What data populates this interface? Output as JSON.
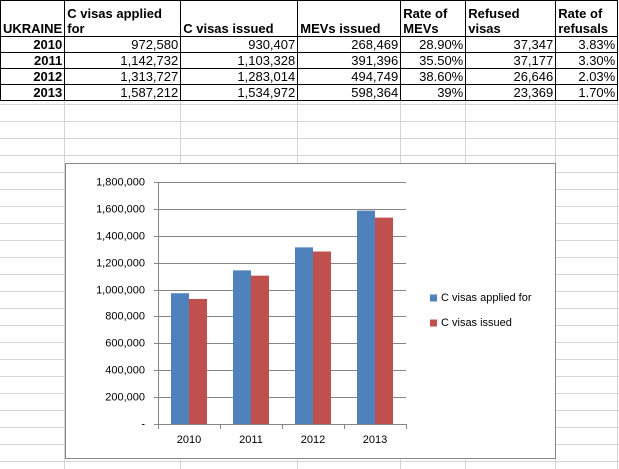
{
  "table": {
    "header": [
      "UKRAINE",
      "C visas applied for",
      "C visas issued",
      "MEVs issued",
      "Rate of MEVs",
      "Refused visas",
      "Rate of refusals"
    ],
    "rows": [
      [
        "2010",
        "972,580",
        "930,407",
        "268,469",
        "28.90%",
        "37,347",
        "3.83%"
      ],
      [
        "2011",
        "1,142,732",
        "1,103,328",
        "391,396",
        "35.50%",
        "37,177",
        "3.30%"
      ],
      [
        "2012",
        "1,313,727",
        "1,283,014",
        "494,749",
        "38.60%",
        "26,646",
        "2.03%"
      ],
      [
        "2013",
        "1,587,212",
        "1,534,972",
        "598,364",
        "39%",
        "23,369",
        "1.70%"
      ]
    ]
  },
  "chart_data": {
    "type": "bar",
    "categories": [
      "2010",
      "2011",
      "2012",
      "2013"
    ],
    "series": [
      {
        "name": "C visas applied for",
        "color": "#4f81bd",
        "values": [
          972580,
          1142732,
          1313727,
          1587212
        ]
      },
      {
        "name": "C visas issued",
        "color": "#c0504d",
        "values": [
          930407,
          1103328,
          1283014,
          1534972
        ]
      }
    ],
    "ylim": [
      0,
      1800000
    ],
    "yticks": [
      {
        "value": 0,
        "label": "-"
      },
      {
        "value": 200000,
        "label": "200,000"
      },
      {
        "value": 400000,
        "label": "400,000"
      },
      {
        "value": 600000,
        "label": "600,000"
      },
      {
        "value": 800000,
        "label": "800,000"
      },
      {
        "value": 1000000,
        "label": "1,000,000"
      },
      {
        "value": 1200000,
        "label": "1,200,000"
      },
      {
        "value": 1400000,
        "label": "1,400,000"
      },
      {
        "value": 1600000,
        "label": "1,600,000"
      },
      {
        "value": 1800000,
        "label": "1,800,000"
      }
    ],
    "grid": true,
    "legend": "right"
  }
}
